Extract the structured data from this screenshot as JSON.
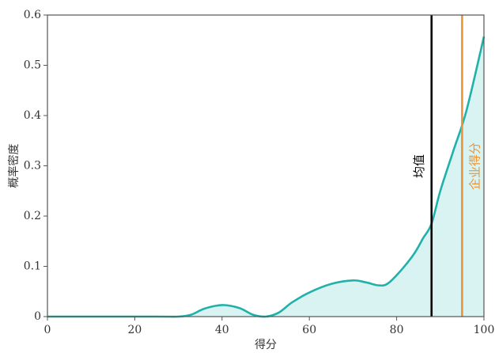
{
  "chart_data": {
    "type": "area",
    "title": "",
    "xlabel": "得分",
    "ylabel": "概率密度",
    "xlim": [
      0,
      100
    ],
    "ylim": [
      0,
      0.6
    ],
    "grid": false,
    "x_ticks": [
      "0",
      "20",
      "40",
      "60",
      "80",
      "100"
    ],
    "y_ticks": [
      "0",
      "0.1",
      "0.2",
      "0.3",
      "0.4",
      "0.5",
      "0.6"
    ],
    "x_tick_values": [
      0,
      20,
      40,
      60,
      80,
      100
    ],
    "y_tick_values": [
      0,
      0.1,
      0.2,
      0.3,
      0.4,
      0.5,
      0.6
    ],
    "series": [
      {
        "color": "#20b2aa",
        "fill": "#d9f2f2",
        "x": [
          0,
          25,
          30,
          33,
          36,
          40,
          44,
          47,
          50,
          53,
          56,
          60,
          65,
          70,
          73,
          76,
          78,
          81,
          84,
          86,
          88,
          90,
          93,
          96,
          100
        ],
        "y": [
          0,
          0,
          0,
          0.004,
          0.016,
          0.023,
          0.017,
          0.004,
          0.0,
          0.008,
          0.028,
          0.048,
          0.065,
          0.072,
          0.068,
          0.062,
          0.066,
          0.092,
          0.125,
          0.155,
          0.185,
          0.25,
          0.33,
          0.41,
          0.557
        ]
      }
    ],
    "annotations": [
      {
        "label": "均值",
        "x": 88,
        "color": "#000000"
      },
      {
        "label": "企业得分",
        "x": 95,
        "color": "#e8953a"
      }
    ]
  }
}
